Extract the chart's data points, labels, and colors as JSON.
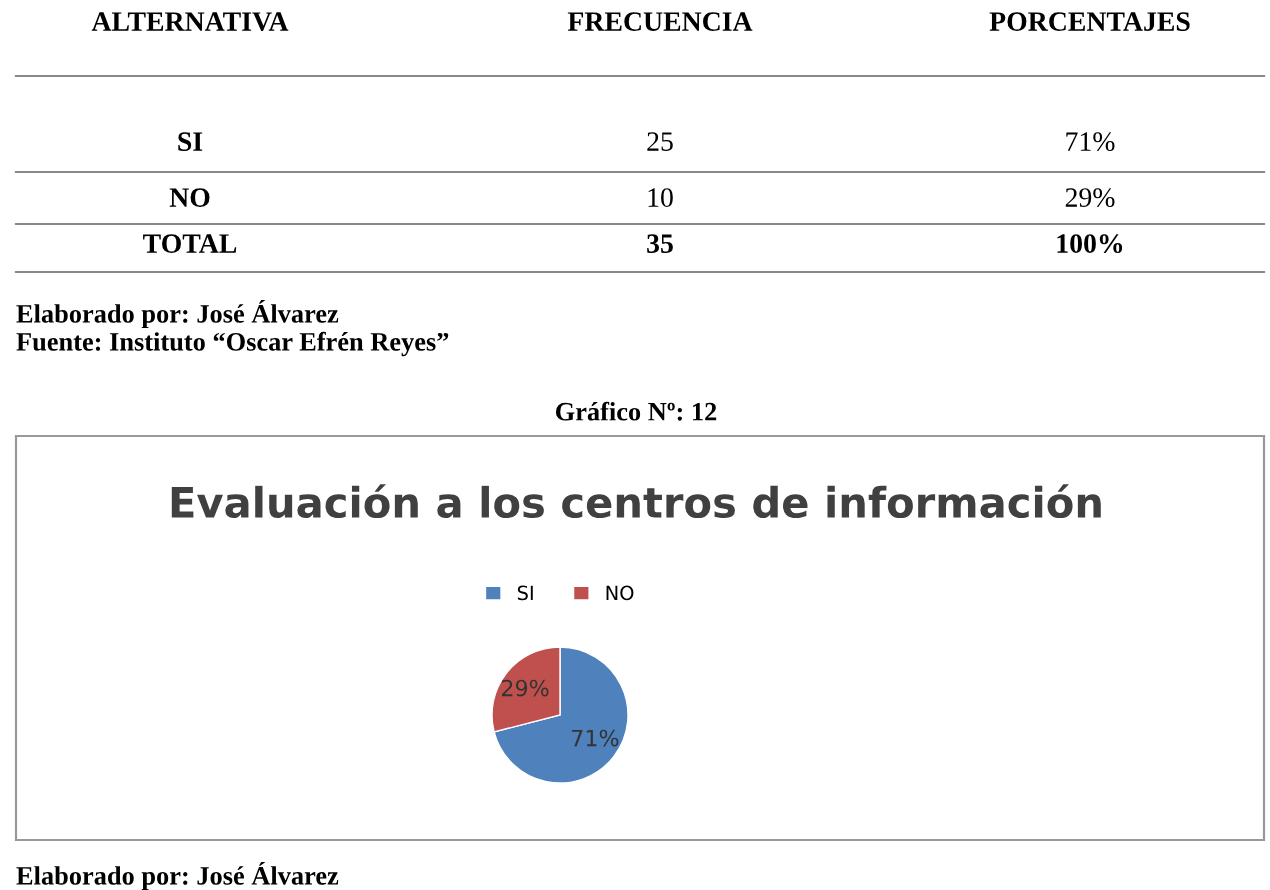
{
  "chart_data": {
    "type": "pie",
    "title": "Evaluación a los centros de información",
    "categories": [
      "SI",
      "NO"
    ],
    "values": [
      71,
      29
    ],
    "colors": [
      "#4f81bd",
      "#c0504d"
    ],
    "value_labels": [
      "71%",
      "29%"
    ],
    "legend": "top",
    "annotations": [
      "ALTERNATIVA",
      "FRECUENCIA",
      "PORCENTAJES",
      "SI",
      "25",
      "71%",
      "NO",
      "10",
      "29%",
      "TOTAL",
      "35",
      "100%",
      "Elaborado por: José Álvarez",
      "Fuente: Instituto “Oscar Efrén Reyes”",
      "Gráfico Nº: 12",
      "Elaborado por: José Álvarez"
    ]
  }
}
